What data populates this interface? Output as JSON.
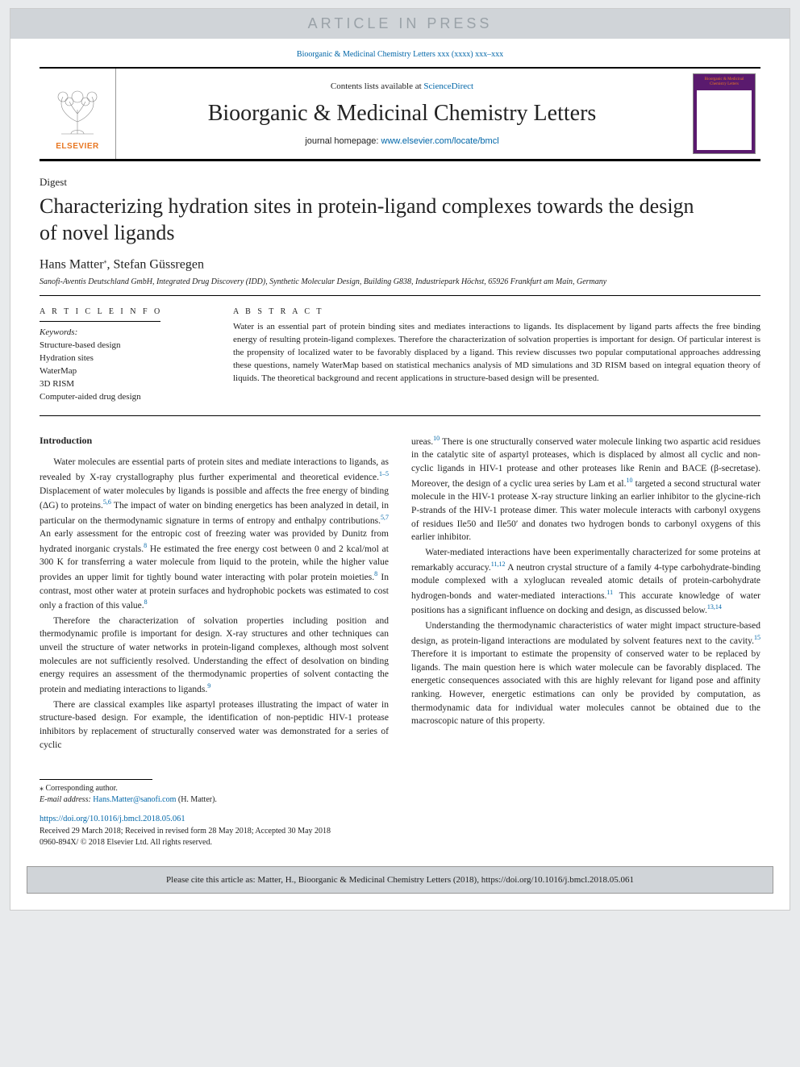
{
  "banner": {
    "text": "ARTICLE IN PRESS"
  },
  "top_citation": "Bioorganic & Medicinal Chemistry Letters xxx (xxxx) xxx–xxx",
  "journal_box": {
    "publisher_label": "ELSEVIER",
    "contents_prefix": "Contents lists available at ",
    "contents_link": "ScienceDirect",
    "journal_name": "Bioorganic & Medicinal Chemistry Letters",
    "homepage_prefix": "journal homepage: ",
    "homepage_url": "www.elsevier.com/locate/bmcl",
    "cover_title": "Bioorganic & Medicinal Chemistry Letters"
  },
  "article": {
    "type": "Digest",
    "title": "Characterizing hydration sites in protein-ligand complexes towards the design of novel ligands",
    "authors_html": "Hans Matter<sup class='black'>⁎</sup>, Stefan Güssregen",
    "affiliation": "Sanofi-Aventis Deutschland GmbH, Integrated Drug Discovery (IDD), Synthetic Molecular Design, Building G838, Industriepark Höchst, 65926 Frankfurt am Main, Germany"
  },
  "info": {
    "label": "A R T I C L E   I N F O",
    "kw_header": "Keywords:",
    "kws": [
      "Structure-based design",
      "Hydration sites",
      "WaterMap",
      "3D RISM",
      "Computer-aided drug design"
    ]
  },
  "abstract": {
    "label": "A B S T R A C T",
    "text": "Water is an essential part of protein binding sites and mediates interactions to ligands. Its displacement by ligand parts affects the free binding energy of resulting protein-ligand complexes. Therefore the characterization of solvation properties is important for design. Of particular interest is the propensity of localized water to be favorably displaced by a ligand. This review discusses two popular computational approaches addressing these questions, namely WaterMap based on statistical mechanics analysis of MD simulations and 3D RISM based on integral equation theory of liquids. The theoretical background and recent applications in structure-based design will be presented."
  },
  "body": {
    "heading": "Introduction",
    "p1": "Water molecules are essential parts of protein sites and mediate interactions to ligands, as revealed by X-ray crystallography plus further experimental and theoretical evidence.<sup>1–5</sup> Displacement of water molecules by ligands is possible and affects the free energy of binding (ΔG) to proteins.<sup>5,6</sup> The impact of water on binding energetics has been analyzed in detail, in particular on the thermodynamic signature in terms of entropy and enthalpy contributions.<sup>5,7</sup> An early assessment for the entropic cost of freezing water was provided by Dunitz from hydrated inorganic crystals.<sup>8</sup> He estimated the free energy cost between 0 and 2 kcal/mol at 300 K for transferring a water molecule from liquid to the protein, while the higher value provides an upper limit for tightly bound water interacting with polar protein moieties.<sup>8</sup> In contrast, most other water at protein surfaces and hydrophobic pockets was estimated to cost only a fraction of this value.<sup>8</sup>",
    "p2": "Therefore the characterization of solvation properties including position and thermodynamic profile is important for design. X-ray structures and other techniques can unveil the structure of water networks in protein-ligand complexes, although most solvent molecules are not sufficiently resolved. Understanding the effect of desolvation on binding energy requires an assessment of the thermodynamic properties of solvent contacting the protein and mediating interactions to ligands.<sup>9</sup>",
    "p3": "There are classical examples like aspartyl proteases illustrating the impact of water in structure-based design. For example, the identification of non-peptidic HIV-1 protease inhibitors by replacement of structurally conserved water was demonstrated for a series of cyclic ",
    "p3b": "ureas.<sup>10</sup> There is one structurally conserved water molecule linking two aspartic acid residues in the catalytic site of aspartyl proteases, which is displaced by almost all cyclic and non-cyclic ligands in HIV-1 protease and other proteases like Renin and BACE (β-secretase). Moreover, the design of a cyclic urea series by Lam et al.<sup>10</sup> targeted a second structural water molecule in the HIV-1 protease X-ray structure linking an earlier inhibitor to the glycine-rich P-strands of the HIV-1 protease dimer. This water molecule interacts with carbonyl oxygens of residues Ile50 and Ile50′ and donates two hydrogen bonds to carbonyl oxygens of this earlier inhibitor.",
    "p4": "Water-mediated interactions have been experimentally characterized for some proteins at remarkably accuracy.<sup>11,12</sup> A neutron crystal structure of a family 4-type carbohydrate-binding module complexed with a xyloglucan revealed atomic details of protein-carbohydrate hydrogen-bonds and water-mediated interactions.<sup>11</sup> This accurate knowledge of water positions has a significant influence on docking and design, as discussed below.<sup>13,14</sup>",
    "p5": "Understanding the thermodynamic characteristics of water might impact structure-based design, as protein-ligand interactions are modulated by solvent features next to the cavity.<sup>15</sup> Therefore it is important to estimate the propensity of conserved water to be replaced by ligands. The main question here is which water molecule can be favorably displaced. The energetic consequences associated with this are highly relevant for ligand pose and affinity ranking. However, energetic estimations can only be provided by computation, as thermodynamic data for individual water molecules cannot be obtained due to the macroscopic nature of this property."
  },
  "footer": {
    "corresponding": "⁎ Corresponding author.",
    "email_label": "E-mail address: ",
    "email": "Hans.Matter@sanofi.com",
    "email_suffix": " (H. Matter).",
    "doi": "https://doi.org/10.1016/j.bmcl.2018.05.061",
    "received": "Received 29 March 2018; Received in revised form 28 May 2018; Accepted 30 May 2018",
    "issn": "0960-894X/ © 2018 Elsevier Ltd. All rights reserved."
  },
  "cite_box": "Please cite this article as: Matter, H., Bioorganic & Medicinal Chemistry Letters (2018), https://doi.org/10.1016/j.bmcl.2018.05.061",
  "colors": {
    "banner_bg": "#d0d4d8",
    "banner_text": "#9aa2a8",
    "link": "#0066a8",
    "elsevier_orange": "#e87722",
    "cover_bg": "#5a1a6e",
    "page_bg": "#ffffff",
    "body_bg": "#e8eaec"
  }
}
